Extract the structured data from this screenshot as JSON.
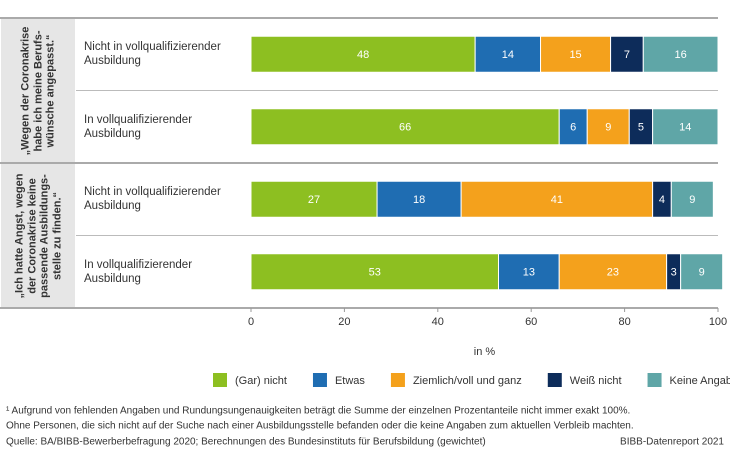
{
  "chart_data": {
    "type": "stacked-bar-horizontal",
    "groups": [
      {
        "lines": [
          "„Wegen der Coronakrise",
          "habe ich meine Berufs-",
          "wünsche angepasst.“"
        ]
      },
      {
        "lines": [
          "„Ich hatte Angst, wegen",
          "der Coronakrise keine",
          "passende Ausbildungs-",
          "stelle zu finden.“"
        ]
      }
    ],
    "categories": [
      "Nicht in vollqualifizierender Ausbildung",
      "In vollqualifizierender Ausbildung",
      "Nicht in vollqualifizierender Ausbildung",
      "In vollqualifizierender Ausbildung"
    ],
    "series": [
      {
        "name": "(Gar) nicht",
        "color": "#8dbf21",
        "values": [
          48,
          66,
          27,
          53
        ]
      },
      {
        "name": "Etwas",
        "color": "#1f6db2",
        "values": [
          14,
          6,
          18,
          13
        ]
      },
      {
        "name": "Ziemlich/voll und ganz",
        "color": "#f4a11c",
        "values": [
          15,
          9,
          41,
          23
        ]
      },
      {
        "name": "Weiß nicht",
        "color": "#0d2c5a",
        "values": [
          7,
          5,
          4,
          3
        ]
      },
      {
        "name": "Keine Angabe",
        "color": "#5fa6a7",
        "values": [
          16,
          14,
          9,
          9
        ]
      }
    ],
    "xlim": [
      0,
      100
    ],
    "xticks": [
      0,
      20,
      40,
      60,
      80,
      100
    ],
    "x_label": "in %",
    "footnotes": [
      "¹ Aufgrund von fehlenden Angaben und Rundungsungenauigkeiten beträgt die Summe der einzelnen Prozentanteile nicht immer exakt 100%.",
      "Ohne Personen, die sich nicht auf der Suche nach einer Ausbildungsstelle befanden oder die keine Angaben zum aktuellen Verbleib machten."
    ],
    "source": "Quelle: BA/BIBB-Bewerberbefragung 2020; Berechnungen des Bundesinstituts für Berufsbildung (gewichtet)",
    "credit": "BIBB-Datenreport 2021"
  }
}
